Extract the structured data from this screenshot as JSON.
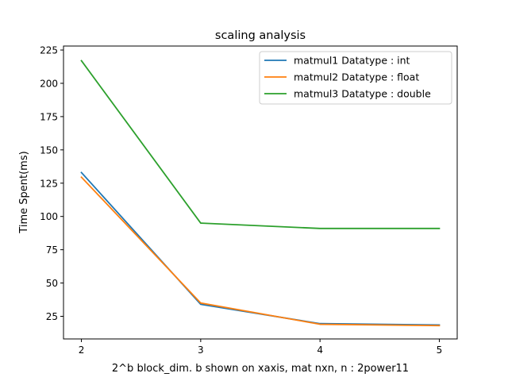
{
  "chart_data": {
    "type": "line",
    "title": "scaling analysis",
    "xlabel": "2^b block_dim. b shown on xaxis, mat nxn, n : 2power11",
    "ylabel": "Time Spent(ms)",
    "x": [
      2,
      3,
      4,
      5
    ],
    "xticks": [
      2,
      3,
      4,
      5
    ],
    "yticks": [
      25,
      50,
      75,
      100,
      125,
      150,
      175,
      200,
      225
    ],
    "xlim": [
      1.85,
      5.15
    ],
    "ylim": [
      8,
      228
    ],
    "grid": false,
    "legend_position": "top-right",
    "series": [
      {
        "name": "matmul1 Datatype : int",
        "color": "#1f77b4",
        "values": [
          133,
          34,
          19.5,
          18.5
        ]
      },
      {
        "name": "matmul2 Datatype : float",
        "color": "#ff7f0e",
        "values": [
          129.5,
          35,
          19,
          18
        ]
      },
      {
        "name": "matmul3 Datatype : double",
        "color": "#2ca02c",
        "values": [
          217,
          95,
          91,
          91
        ]
      }
    ]
  }
}
